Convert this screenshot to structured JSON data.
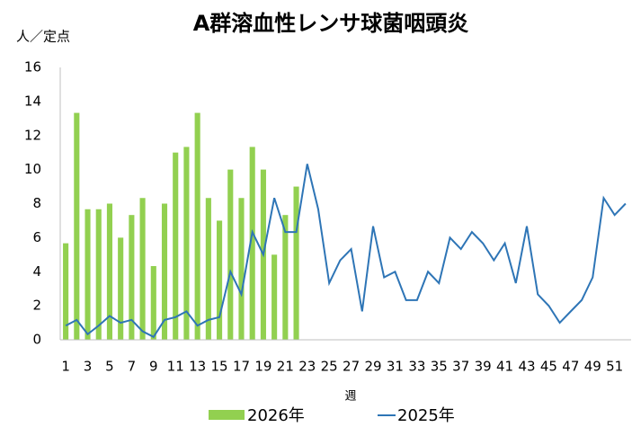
{
  "chart_data": {
    "type": "bar",
    "title": "A群溶血性レンサ球菌咽頭炎",
    "y_label": "人／定点",
    "x_label": "週",
    "categories": [
      1,
      null,
      3,
      null,
      5,
      null,
      7,
      null,
      9,
      null,
      11,
      null,
      13,
      null,
      15,
      null,
      17,
      null,
      19,
      null,
      21,
      null,
      23,
      null,
      25,
      null,
      27,
      null,
      29,
      null,
      31,
      null,
      33,
      null,
      35,
      null,
      37,
      null,
      39,
      null,
      41,
      null,
      43,
      null,
      45,
      null,
      47,
      null,
      49,
      null,
      51,
      null
    ],
    "series": [
      {
        "name": "2026年",
        "type": "bar",
        "color": "#92d050",
        "values": [
          5.67,
          13.33,
          7.67,
          7.67,
          8.0,
          6.0,
          7.33,
          8.33,
          4.33,
          8.0,
          11.0,
          11.33,
          13.33,
          8.33,
          7.0,
          10.0,
          8.33,
          11.33,
          10.0,
          5.0,
          7.33,
          9.0,
          null,
          null,
          null,
          null,
          null,
          null,
          null,
          null,
          null,
          null,
          null,
          null,
          null,
          null,
          null,
          null,
          null,
          null,
          null,
          null,
          null,
          null,
          null,
          null,
          null,
          null,
          null,
          null,
          null,
          null
        ]
      },
      {
        "name": "2025年",
        "type": "line",
        "color": "#2e75b6",
        "values": [
          0.83,
          1.17,
          0.33,
          0.83,
          1.4,
          1.0,
          1.17,
          0.5,
          0.17,
          1.17,
          1.33,
          1.67,
          0.83,
          1.17,
          1.33,
          4.0,
          2.67,
          6.33,
          5.0,
          8.33,
          6.33,
          6.33,
          10.33,
          7.67,
          3.33,
          4.67,
          5.33,
          1.67,
          6.67,
          3.67,
          4.0,
          2.33,
          2.33,
          4.0,
          3.33,
          6.0,
          5.33,
          6.33,
          5.67,
          4.67,
          5.67,
          3.33,
          6.67,
          2.67,
          2.0,
          1.0,
          1.67,
          2.33,
          3.67,
          8.33,
          7.33,
          8.0
        ]
      }
    ],
    "ylim": [
      0,
      16
    ],
    "yticks": [
      0,
      2,
      4,
      6,
      8,
      10,
      12,
      14,
      16
    ],
    "grid": false
  }
}
